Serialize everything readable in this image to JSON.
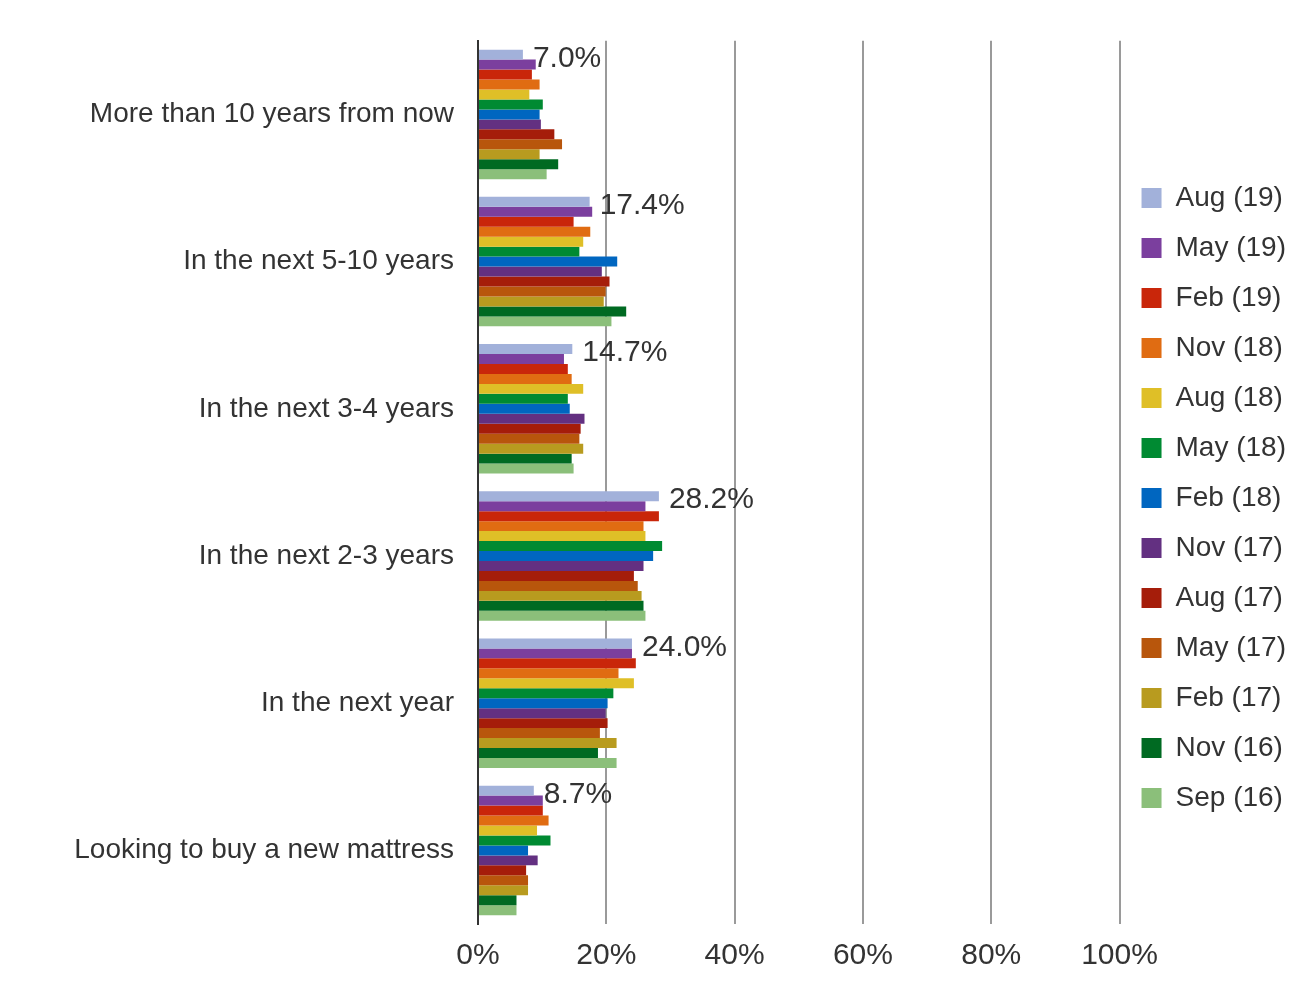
{
  "chart_data": {
    "type": "bar",
    "orientation": "horizontal",
    "categories": [
      "More than 10 years from now",
      "In the next 5-10 years",
      "In the next 3-4 years",
      "In the next 2-3 years",
      "In the next year",
      "Looking to buy a new mattress"
    ],
    "series": [
      {
        "name": "Aug (19)",
        "color": "#a2b1da",
        "values": [
          7.0,
          17.4,
          14.7,
          28.2,
          24.0,
          8.7
        ],
        "value_labels": [
          "7.0%",
          "17.4%",
          "14.7%",
          "28.2%",
          "24.0%",
          "8.7%"
        ]
      },
      {
        "name": "May (19)",
        "color": "#7b3f9e",
        "values": [
          9.0,
          17.8,
          13.4,
          26.1,
          24.0,
          10.1
        ]
      },
      {
        "name": "Feb (19)",
        "color": "#c9260a",
        "values": [
          8.4,
          14.9,
          14.0,
          28.2,
          24.6,
          10.1
        ]
      },
      {
        "name": "Nov (18)",
        "color": "#e06c12",
        "values": [
          9.6,
          17.5,
          14.6,
          25.8,
          21.9,
          11.0
        ]
      },
      {
        "name": "Aug (18)",
        "color": "#dfbf27",
        "values": [
          8.0,
          16.4,
          16.4,
          26.1,
          24.3,
          9.2
        ]
      },
      {
        "name": "May (18)",
        "color": "#008a32",
        "values": [
          10.1,
          15.8,
          14.0,
          28.7,
          21.1,
          11.3
        ]
      },
      {
        "name": "Feb (18)",
        "color": "#0066c0",
        "values": [
          9.6,
          21.7,
          14.3,
          27.3,
          20.2,
          7.8
        ]
      },
      {
        "name": "Nov (17)",
        "color": "#633081",
        "values": [
          9.8,
          19.3,
          16.6,
          25.8,
          19.9,
          9.3
        ]
      },
      {
        "name": "Aug (17)",
        "color": "#a51d0a",
        "values": [
          11.9,
          20.5,
          16.0,
          24.3,
          20.2,
          7.5
        ]
      },
      {
        "name": "May (17)",
        "color": "#b8560c",
        "values": [
          13.1,
          19.9,
          15.8,
          24.9,
          19.0,
          7.8
        ]
      },
      {
        "name": "Feb (17)",
        "color": "#b89b1f",
        "values": [
          9.6,
          19.6,
          16.4,
          25.5,
          21.6,
          7.8
        ]
      },
      {
        "name": "Nov (16)",
        "color": "#006a22",
        "values": [
          12.5,
          23.1,
          14.6,
          25.8,
          18.7,
          6.0
        ]
      },
      {
        "name": "Sep (16)",
        "color": "#8bbf7a",
        "values": [
          10.7,
          20.8,
          14.9,
          26.1,
          21.6,
          6.0
        ]
      }
    ],
    "xlim": [
      0,
      100
    ],
    "xticks": [
      {
        "value": 0,
        "label": "0%"
      },
      {
        "value": 20,
        "label": "20%"
      },
      {
        "value": 40,
        "label": "40%"
      },
      {
        "value": 60,
        "label": "60%"
      },
      {
        "value": 80,
        "label": "80%"
      },
      {
        "value": 100,
        "label": "100%"
      }
    ],
    "grid": "x",
    "legend": "right"
  }
}
